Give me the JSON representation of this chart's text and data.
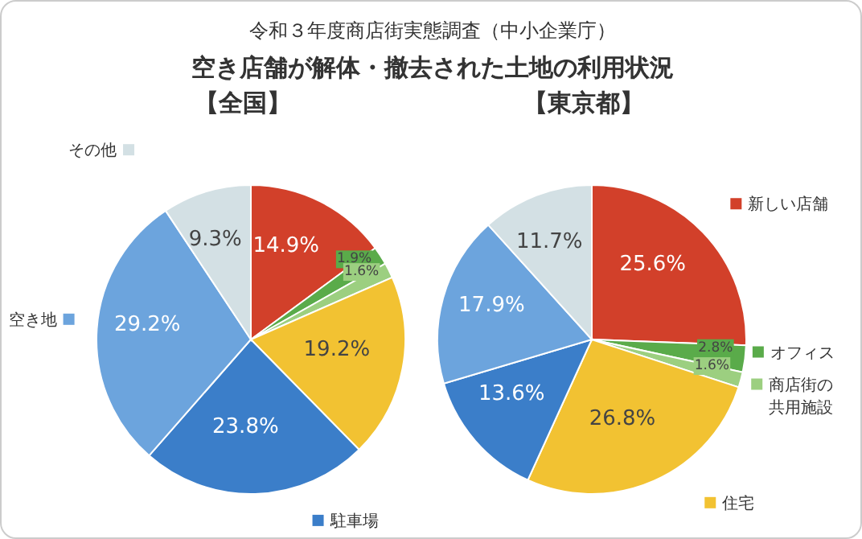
{
  "chart_data": [
    {
      "type": "pie",
      "title": "【全国】",
      "legend": "left",
      "annotations": [
        "令和３年度商店街実態調査（中小企業庁）",
        "空き店舗が解体・撤去された土地の利用状況"
      ],
      "categories": [
        null,
        null,
        null,
        null,
        "駐車場",
        "空き地",
        "その他"
      ],
      "values": [
        14.9,
        1.9,
        1.6,
        19.2,
        23.8,
        29.2,
        9.3
      ],
      "value_labels": [
        "14.9%",
        "1.9%",
        "1.6%",
        "19.2%",
        "23.8%",
        "29.2%",
        "9.3%"
      ],
      "colors": [
        "#d2402a",
        "#5aab4a",
        "#9ccf80",
        "#f2c232",
        "#3b7ec9",
        "#6ca4dd",
        "#d3e0e4"
      ]
    },
    {
      "type": "pie",
      "title": "【東京都】",
      "legend": "right",
      "categories": [
        "新しい店舗",
        "オフィス",
        "商店街の共用施設",
        "住宅",
        null,
        null,
        null
      ],
      "values": [
        25.6,
        2.8,
        1.6,
        26.8,
        13.6,
        17.9,
        11.7
      ],
      "value_labels": [
        "25.6%",
        "2.8%",
        "1.6%",
        "26.8%",
        "13.6%",
        "17.9%",
        "11.7%"
      ],
      "colors": [
        "#d2402a",
        "#5aab4a",
        "#9ccf80",
        "#f2c232",
        "#3b7ec9",
        "#6ca4dd",
        "#d3e0e4"
      ]
    }
  ]
}
